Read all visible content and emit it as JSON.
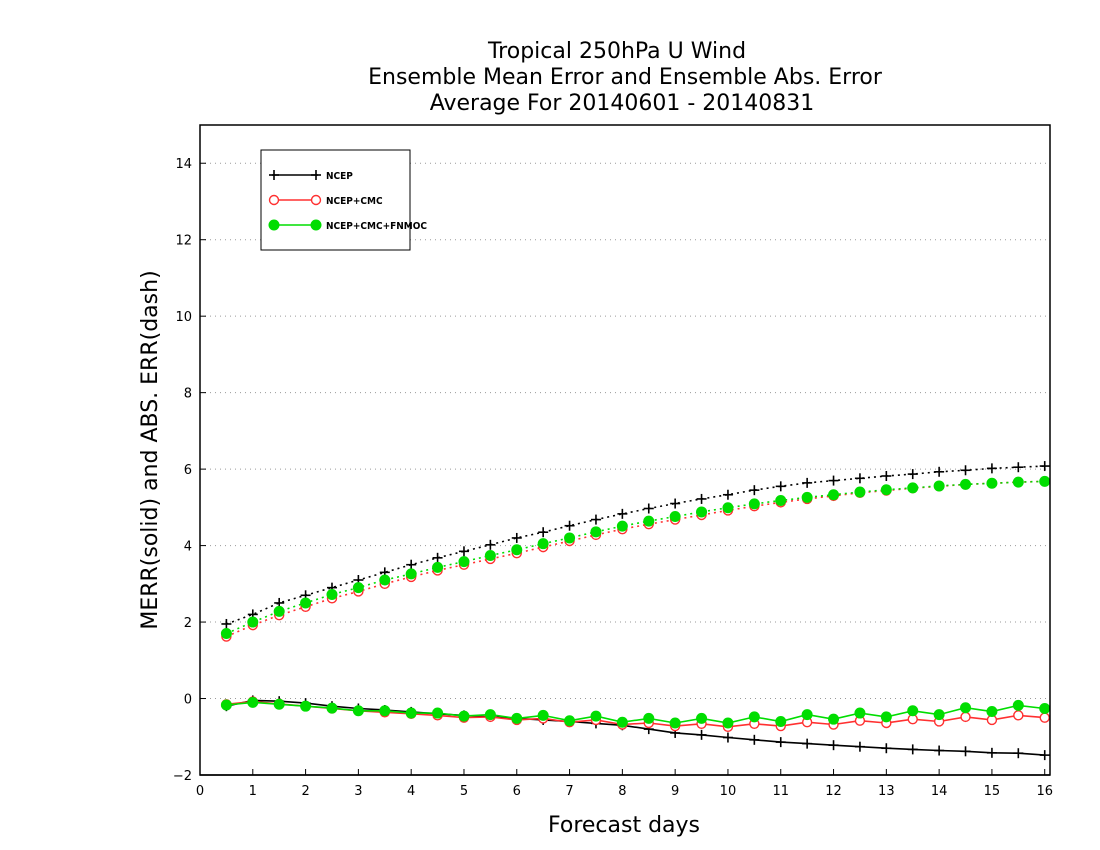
{
  "chart_data": {
    "type": "line",
    "title": [
      "Tropical 250hPa U Wind",
      "Ensemble Mean Error and Ensemble Abs. Error",
      "Average For 20140601 - 20140831"
    ],
    "xlabel": "Forecast days",
    "ylabel": "MERR(solid) and ABS. ERR(dash)",
    "xlim": [
      0,
      16.1
    ],
    "ylim": [
      -2,
      15
    ],
    "x_ticks": [
      0,
      1,
      2,
      3,
      4,
      5,
      6,
      7,
      8,
      9,
      10,
      11,
      12,
      13,
      14,
      15,
      16
    ],
    "y_ticks": [
      -2,
      0,
      2,
      4,
      6,
      8,
      10,
      12,
      14
    ],
    "grid": true,
    "legend_position": "top-left",
    "x": [
      0.5,
      1,
      1.5,
      2,
      2.5,
      3,
      3.5,
      4,
      4.5,
      5,
      5.5,
      6,
      6.5,
      7,
      7.5,
      8,
      8.5,
      9,
      9.5,
      10,
      10.5,
      11,
      11.5,
      12,
      12.5,
      13,
      13.5,
      14,
      14.5,
      15,
      15.5,
      16
    ],
    "series": [
      {
        "name": "NCEP",
        "color": "#000000",
        "marker": "plus",
        "merr": [
          -0.2,
          -0.05,
          -0.07,
          -0.12,
          -0.2,
          -0.26,
          -0.3,
          -0.35,
          -0.4,
          -0.44,
          -0.48,
          -0.52,
          -0.56,
          -0.6,
          -0.65,
          -0.7,
          -0.8,
          -0.9,
          -0.95,
          -1.02,
          -1.08,
          -1.14,
          -1.18,
          -1.22,
          -1.26,
          -1.3,
          -1.33,
          -1.36,
          -1.38,
          -1.42,
          -1.43,
          -1.48
        ],
        "abs_err": [
          1.95,
          2.2,
          2.5,
          2.7,
          2.9,
          3.1,
          3.3,
          3.5,
          3.68,
          3.85,
          4.02,
          4.2,
          4.35,
          4.52,
          4.68,
          4.83,
          4.97,
          5.1,
          5.22,
          5.33,
          5.45,
          5.55,
          5.64,
          5.7,
          5.76,
          5.82,
          5.87,
          5.93,
          5.97,
          6.02,
          6.05,
          6.08
        ]
      },
      {
        "name": "NCEP+CMC",
        "color": "#ff3030",
        "marker": "open-circle",
        "merr": [
          -0.15,
          -0.08,
          -0.14,
          -0.2,
          -0.26,
          -0.32,
          -0.36,
          -0.4,
          -0.44,
          -0.5,
          -0.48,
          -0.56,
          -0.52,
          -0.62,
          -0.56,
          -0.68,
          -0.64,
          -0.72,
          -0.66,
          -0.74,
          -0.66,
          -0.72,
          -0.62,
          -0.68,
          -0.58,
          -0.64,
          -0.54,
          -0.6,
          -0.48,
          -0.56,
          -0.44,
          -0.5
        ],
        "abs_err": [
          1.62,
          1.92,
          2.18,
          2.4,
          2.62,
          2.8,
          3.0,
          3.18,
          3.35,
          3.5,
          3.65,
          3.8,
          3.96,
          4.12,
          4.28,
          4.43,
          4.56,
          4.68,
          4.8,
          4.92,
          5.03,
          5.13,
          5.22,
          5.3,
          5.38,
          5.44,
          5.5,
          5.55,
          5.6,
          5.63,
          5.66,
          5.68
        ]
      },
      {
        "name": "NCEP+CMC+FNMOC",
        "color": "#00dd00",
        "marker": "filled-circle",
        "merr": [
          -0.17,
          -0.1,
          -0.15,
          -0.2,
          -0.25,
          -0.32,
          -0.32,
          -0.38,
          -0.38,
          -0.46,
          -0.42,
          -0.52,
          -0.44,
          -0.58,
          -0.46,
          -0.62,
          -0.52,
          -0.64,
          -0.52,
          -0.64,
          -0.48,
          -0.6,
          -0.42,
          -0.54,
          -0.38,
          -0.48,
          -0.32,
          -0.42,
          -0.24,
          -0.34,
          -0.18,
          -0.26
        ],
        "abs_err": [
          1.7,
          2.0,
          2.28,
          2.5,
          2.72,
          2.9,
          3.1,
          3.26,
          3.43,
          3.58,
          3.74,
          3.89,
          4.05,
          4.2,
          4.36,
          4.51,
          4.64,
          4.76,
          4.88,
          4.99,
          5.09,
          5.18,
          5.26,
          5.33,
          5.4,
          5.46,
          5.51,
          5.56,
          5.6,
          5.63,
          5.66,
          5.68
        ]
      }
    ]
  }
}
